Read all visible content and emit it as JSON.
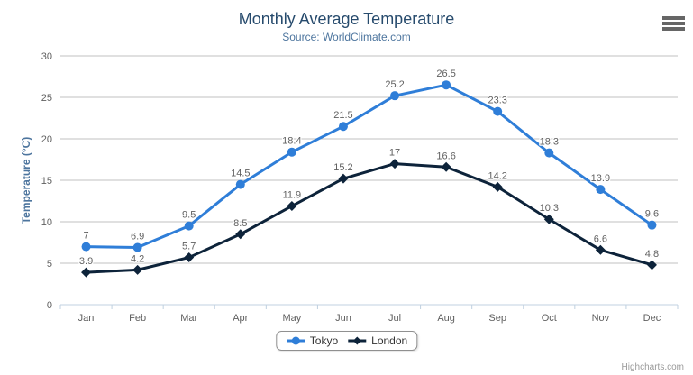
{
  "chart_data": {
    "type": "line",
    "title": "Monthly Average Temperature",
    "subtitle": "Source: WorldClimate.com",
    "xlabel": "",
    "ylabel": "Temperature (°C)",
    "categories": [
      "Jan",
      "Feb",
      "Mar",
      "Apr",
      "May",
      "Jun",
      "Jul",
      "Aug",
      "Sep",
      "Oct",
      "Nov",
      "Dec"
    ],
    "series": [
      {
        "name": "Tokyo",
        "marker": "circle",
        "color": "#2f7ed8",
        "values": [
          7,
          6.9,
          9.5,
          14.5,
          18.4,
          21.5,
          25.2,
          26.5,
          23.3,
          18.3,
          13.9,
          9.6
        ]
      },
      {
        "name": "London",
        "marker": "diamond",
        "color": "#0d233a",
        "values": [
          3.9,
          4.2,
          5.7,
          8.5,
          11.9,
          15.2,
          17,
          16.6,
          14.2,
          10.3,
          6.6,
          4.8
        ]
      }
    ],
    "ylim": [
      0,
      30
    ],
    "ytick_interval": 5,
    "grid": true,
    "legend_position": "bottom",
    "data_labels": true
  },
  "credits": "Highcharts.com",
  "colors": {
    "title": "#274b6d",
    "subtitle": "#4d759e",
    "axis_title": "#4d759e",
    "grid": "#c0c0c0",
    "axis_line": "#c0d0e0",
    "tick_label": "#606060",
    "data_label": "#606060",
    "legend_border": "#909090",
    "legend_text": "#333333",
    "credits": "#999999",
    "menu_icon": "#666666"
  },
  "icons": {
    "context_menu": "hamburger-icon"
  }
}
